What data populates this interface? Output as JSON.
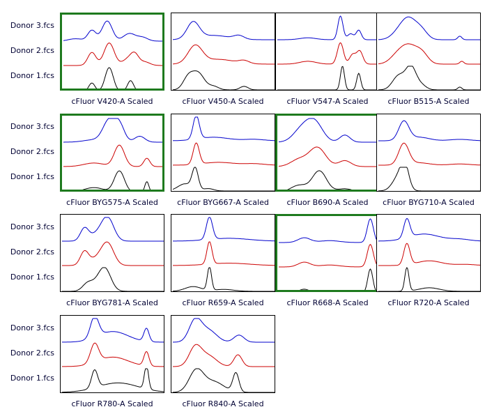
{
  "row_labels": [
    "Donor 3.fcs",
    "Donor 2.fcs",
    "Donor 1.fcs"
  ],
  "chart_data": [
    {
      "type": "line",
      "title": "cFluor V420-A Scaled",
      "selected": true,
      "series": [
        {
          "name": "Donor 3.fcs",
          "color": "#0000cc",
          "peaks": [
            [
              0.12,
              0.07,
              0.1
            ],
            [
              0.28,
              0.04,
              0.45
            ],
            [
              0.43,
              0.05,
              0.85
            ],
            [
              0.65,
              0.06,
              0.32
            ],
            [
              0.78,
              0.05,
              0.15
            ]
          ]
        },
        {
          "name": "Donor 2.fcs",
          "color": "#cc0000",
          "peaks": [
            [
              0.28,
              0.04,
              0.55
            ],
            [
              0.45,
              0.05,
              0.95
            ],
            [
              0.63,
              0.05,
              0.25
            ],
            [
              0.7,
              0.04,
              0.45
            ],
            [
              0.8,
              0.05,
              0.15
            ]
          ]
        },
        {
          "name": "Donor 1.fcs",
          "color": "#000000",
          "peaks": [
            [
              0.28,
              0.03,
              0.35
            ],
            [
              0.45,
              0.04,
              1.0
            ],
            [
              0.66,
              0.03,
              0.45
            ]
          ]
        }
      ]
    },
    {
      "type": "line",
      "title": "cFluor V450-A Scaled",
      "selected": false,
      "series": [
        {
          "name": "Donor 3.fcs",
          "color": "#0000cc",
          "peaks": [
            [
              0.2,
              0.06,
              0.7
            ],
            [
              0.4,
              0.15,
              0.18
            ],
            [
              0.65,
              0.05,
              0.15
            ]
          ]
        },
        {
          "name": "Donor 2.fcs",
          "color": "#cc0000",
          "peaks": [
            [
              0.22,
              0.07,
              0.75
            ],
            [
              0.45,
              0.15,
              0.2
            ],
            [
              0.7,
              0.05,
              0.12
            ]
          ]
        },
        {
          "name": "Donor 1.fcs",
          "color": "#000000",
          "peaks": [
            [
              0.15,
              0.05,
              0.5
            ],
            [
              0.25,
              0.06,
              0.7
            ],
            [
              0.4,
              0.05,
              0.15
            ],
            [
              0.7,
              0.04,
              0.15
            ]
          ]
        }
      ]
    },
    {
      "type": "line",
      "title": "cFluor V547-A Scaled",
      "selected": false,
      "series": [
        {
          "name": "Donor 3.fcs",
          "color": "#0000cc",
          "peaks": [
            [
              0.3,
              0.08,
              0.08
            ],
            [
              0.62,
              0.025,
              1.0
            ],
            [
              0.72,
              0.03,
              0.25
            ],
            [
              0.8,
              0.025,
              0.4
            ]
          ]
        },
        {
          "name": "Donor 2.fcs",
          "color": "#cc0000",
          "peaks": [
            [
              0.3,
              0.08,
              0.12
            ],
            [
              0.62,
              0.03,
              0.9
            ],
            [
              0.74,
              0.03,
              0.4
            ],
            [
              0.81,
              0.03,
              0.55
            ]
          ]
        },
        {
          "name": "Donor 1.fcs",
          "color": "#000000",
          "peaks": [
            [
              0.64,
              0.02,
              1.0
            ],
            [
              0.8,
              0.02,
              0.7
            ]
          ]
        }
      ]
    },
    {
      "type": "line",
      "title": "cFluor B515-A Scaled",
      "selected": false,
      "series": [
        {
          "name": "Donor 3.fcs",
          "color": "#0000cc",
          "peaks": [
            [
              0.2,
              0.07,
              0.3
            ],
            [
              0.3,
              0.07,
              0.8
            ],
            [
              0.42,
              0.06,
              0.4
            ],
            [
              0.8,
              0.02,
              0.15
            ]
          ]
        },
        {
          "name": "Donor 2.fcs",
          "color": "#cc0000",
          "peaks": [
            [
              0.18,
              0.07,
              0.3
            ],
            [
              0.3,
              0.08,
              0.75
            ],
            [
              0.43,
              0.06,
              0.4
            ],
            [
              0.82,
              0.02,
              0.12
            ]
          ]
        },
        {
          "name": "Donor 1.fcs",
          "color": "#000000",
          "peaks": [
            [
              0.2,
              0.06,
              0.6
            ],
            [
              0.32,
              0.05,
              0.95
            ],
            [
              0.42,
              0.05,
              0.2
            ],
            [
              0.8,
              0.02,
              0.12
            ]
          ]
        }
      ]
    },
    {
      "type": "line",
      "title": "cFluor BYG575-A Scaled",
      "selected": true,
      "series": [
        {
          "name": "Donor 3.fcs",
          "color": "#0000cc",
          "peaks": [
            [
              0.3,
              0.1,
              0.1
            ],
            [
              0.45,
              0.06,
              0.9
            ],
            [
              0.55,
              0.05,
              0.7
            ],
            [
              0.75,
              0.05,
              0.25
            ]
          ]
        },
        {
          "name": "Donor 2.fcs",
          "color": "#cc0000",
          "peaks": [
            [
              0.3,
              0.1,
              0.15
            ],
            [
              0.55,
              0.05,
              0.9
            ],
            [
              0.82,
              0.03,
              0.35
            ]
          ]
        },
        {
          "name": "Donor 1.fcs",
          "color": "#000000",
          "peaks": [
            [
              0.3,
              0.1,
              0.2
            ],
            [
              0.55,
              0.05,
              0.9
            ],
            [
              0.82,
              0.02,
              0.45
            ]
          ]
        }
      ]
    },
    {
      "type": "line",
      "title": "cFluor BYG667-A Scaled",
      "selected": false,
      "series": [
        {
          "name": "Donor 3.fcs",
          "color": "#0000cc",
          "peaks": [
            [
              0.23,
              0.03,
              1.0
            ],
            [
              0.4,
              0.15,
              0.15
            ],
            [
              0.8,
              0.1,
              0.06
            ]
          ]
        },
        {
          "name": "Donor 2.fcs",
          "color": "#cc0000",
          "peaks": [
            [
              0.23,
              0.03,
              0.9
            ],
            [
              0.45,
              0.15,
              0.12
            ],
            [
              0.8,
              0.1,
              0.06
            ]
          ]
        },
        {
          "name": "Donor 1.fcs",
          "color": "#000000",
          "peaks": [
            [
              0.12,
              0.07,
              0.3
            ],
            [
              0.22,
              0.03,
              0.9
            ],
            [
              0.35,
              0.05,
              0.1
            ]
          ]
        }
      ]
    },
    {
      "type": "line",
      "title": "cFluor B690-A Scaled",
      "selected": true,
      "series": [
        {
          "name": "Donor 3.fcs",
          "color": "#0000cc",
          "peaks": [
            [
              0.22,
              0.08,
              0.5
            ],
            [
              0.35,
              0.08,
              0.85
            ],
            [
              0.65,
              0.05,
              0.3
            ]
          ]
        },
        {
          "name": "Donor 2.fcs",
          "color": "#cc0000",
          "peaks": [
            [
              0.2,
              0.08,
              0.3
            ],
            [
              0.38,
              0.08,
              0.8
            ],
            [
              0.65,
              0.06,
              0.25
            ]
          ]
        },
        {
          "name": "Donor 1.fcs",
          "color": "#000000",
          "peaks": [
            [
              0.2,
              0.08,
              0.3
            ],
            [
              0.4,
              0.07,
              0.9
            ],
            [
              0.65,
              0.08,
              0.15
            ]
          ]
        }
      ]
    },
    {
      "type": "line",
      "title": "cFluor BYG710-A Scaled",
      "selected": false,
      "series": [
        {
          "name": "Donor 3.fcs",
          "color": "#0000cc",
          "peaks": [
            [
              0.25,
              0.05,
              0.8
            ],
            [
              0.4,
              0.1,
              0.15
            ],
            [
              0.8,
              0.1,
              0.06
            ]
          ]
        },
        {
          "name": "Donor 2.fcs",
          "color": "#cc0000",
          "peaks": [
            [
              0.25,
              0.05,
              0.9
            ],
            [
              0.4,
              0.1,
              0.1
            ],
            [
              0.8,
              0.1,
              0.05
            ]
          ]
        },
        {
          "name": "Donor 1.fcs",
          "color": "#000000",
          "peaks": [
            [
              0.2,
              0.06,
              0.6
            ],
            [
              0.26,
              0.04,
              0.9
            ]
          ]
        }
      ]
    },
    {
      "type": "line",
      "title": "cFluor BYG781-A Scaled",
      "selected": false,
      "series": [
        {
          "name": "Donor 3.fcs",
          "color": "#0000cc",
          "peaks": [
            [
              0.22,
              0.04,
              0.5
            ],
            [
              0.45,
              0.06,
              0.9
            ],
            [
              0.35,
              0.08,
              0.3
            ]
          ]
        },
        {
          "name": "Donor 2.fcs",
          "color": "#cc0000",
          "peaks": [
            [
              0.22,
              0.04,
              0.55
            ],
            [
              0.45,
              0.06,
              0.85
            ],
            [
              0.35,
              0.08,
              0.3
            ]
          ]
        },
        {
          "name": "Donor 1.fcs",
          "color": "#000000",
          "peaks": [
            [
              0.25,
              0.05,
              0.3
            ],
            [
              0.42,
              0.06,
              0.95
            ],
            [
              0.33,
              0.06,
              0.2
            ]
          ]
        }
      ]
    },
    {
      "type": "line",
      "title": "cFluor R659-A Scaled",
      "selected": false,
      "series": [
        {
          "name": "Donor 3.fcs",
          "color": "#0000cc",
          "peaks": [
            [
              0.36,
              0.03,
              0.95
            ],
            [
              0.55,
              0.2,
              0.12
            ]
          ]
        },
        {
          "name": "Donor 2.fcs",
          "color": "#cc0000",
          "peaks": [
            [
              0.36,
              0.025,
              0.95
            ],
            [
              0.55,
              0.2,
              0.1
            ]
          ]
        },
        {
          "name": "Donor 1.fcs",
          "color": "#000000",
          "peaks": [
            [
              0.2,
              0.08,
              0.2
            ],
            [
              0.36,
              0.02,
              1.0
            ],
            [
              0.5,
              0.1,
              0.08
            ]
          ]
        }
      ]
    },
    {
      "type": "line",
      "title": "cFluor R668-A Scaled",
      "selected": true,
      "series": [
        {
          "name": "Donor 3.fcs",
          "color": "#0000cc",
          "peaks": [
            [
              0.25,
              0.06,
              0.2
            ],
            [
              0.5,
              0.1,
              0.08
            ],
            [
              0.9,
              0.03,
              1.0
            ]
          ]
        },
        {
          "name": "Donor 2.fcs",
          "color": "#cc0000",
          "peaks": [
            [
              0.25,
              0.06,
              0.2
            ],
            [
              0.5,
              0.1,
              0.08
            ],
            [
              0.9,
              0.03,
              0.95
            ]
          ]
        },
        {
          "name": "Donor 1.fcs",
          "color": "#000000",
          "peaks": [
            [
              0.25,
              0.05,
              0.15
            ],
            [
              0.9,
              0.025,
              1.0
            ]
          ]
        }
      ]
    },
    {
      "type": "line",
      "title": "cFluor R720-A Scaled",
      "selected": false,
      "series": [
        {
          "name": "Donor 3.fcs",
          "color": "#0000cc",
          "peaks": [
            [
              0.28,
              0.03,
              0.8
            ],
            [
              0.45,
              0.15,
              0.3
            ],
            [
              0.8,
              0.1,
              0.08
            ]
          ]
        },
        {
          "name": "Donor 2.fcs",
          "color": "#cc0000",
          "peaks": [
            [
              0.28,
              0.03,
              0.9
            ],
            [
              0.5,
              0.12,
              0.2
            ],
            [
              0.85,
              0.1,
              0.05
            ]
          ]
        },
        {
          "name": "Donor 1.fcs",
          "color": "#000000",
          "peaks": [
            [
              0.28,
              0.02,
              1.0
            ],
            [
              0.5,
              0.1,
              0.15
            ]
          ]
        }
      ]
    },
    {
      "type": "line",
      "title": "cFluor R780-A Scaled",
      "selected": false,
      "series": [
        {
          "name": "Donor 3.fcs",
          "color": "#0000cc",
          "peaks": [
            [
              0.32,
              0.04,
              0.9
            ],
            [
              0.5,
              0.15,
              0.45
            ],
            [
              0.83,
              0.025,
              0.55
            ]
          ]
        },
        {
          "name": "Donor 2.fcs",
          "color": "#cc0000",
          "peaks": [
            [
              0.32,
              0.04,
              0.8
            ],
            [
              0.5,
              0.15,
              0.4
            ],
            [
              0.83,
              0.025,
              0.6
            ]
          ]
        },
        {
          "name": "Donor 1.fcs",
          "color": "#000000",
          "peaks": [
            [
              0.32,
              0.03,
              0.75
            ],
            [
              0.55,
              0.2,
              0.4
            ],
            [
              0.83,
              0.02,
              1.0
            ]
          ]
        }
      ]
    },
    {
      "type": "line",
      "title": "cFluor R840-A Scaled",
      "selected": false,
      "series": [
        {
          "name": "Donor 3.fcs",
          "color": "#0000cc",
          "peaks": [
            [
              0.22,
              0.06,
              0.9
            ],
            [
              0.35,
              0.08,
              0.5
            ],
            [
              0.65,
              0.05,
              0.3
            ]
          ]
        },
        {
          "name": "Donor 2.fcs",
          "color": "#cc0000",
          "peaks": [
            [
              0.22,
              0.06,
              0.8
            ],
            [
              0.35,
              0.08,
              0.45
            ],
            [
              0.64,
              0.04,
              0.5
            ]
          ]
        },
        {
          "name": "Donor 1.fcs",
          "color": "#000000",
          "peaks": [
            [
              0.23,
              0.07,
              0.9
            ],
            [
              0.4,
              0.1,
              0.45
            ],
            [
              0.62,
              0.03,
              0.8
            ]
          ]
        }
      ]
    }
  ]
}
